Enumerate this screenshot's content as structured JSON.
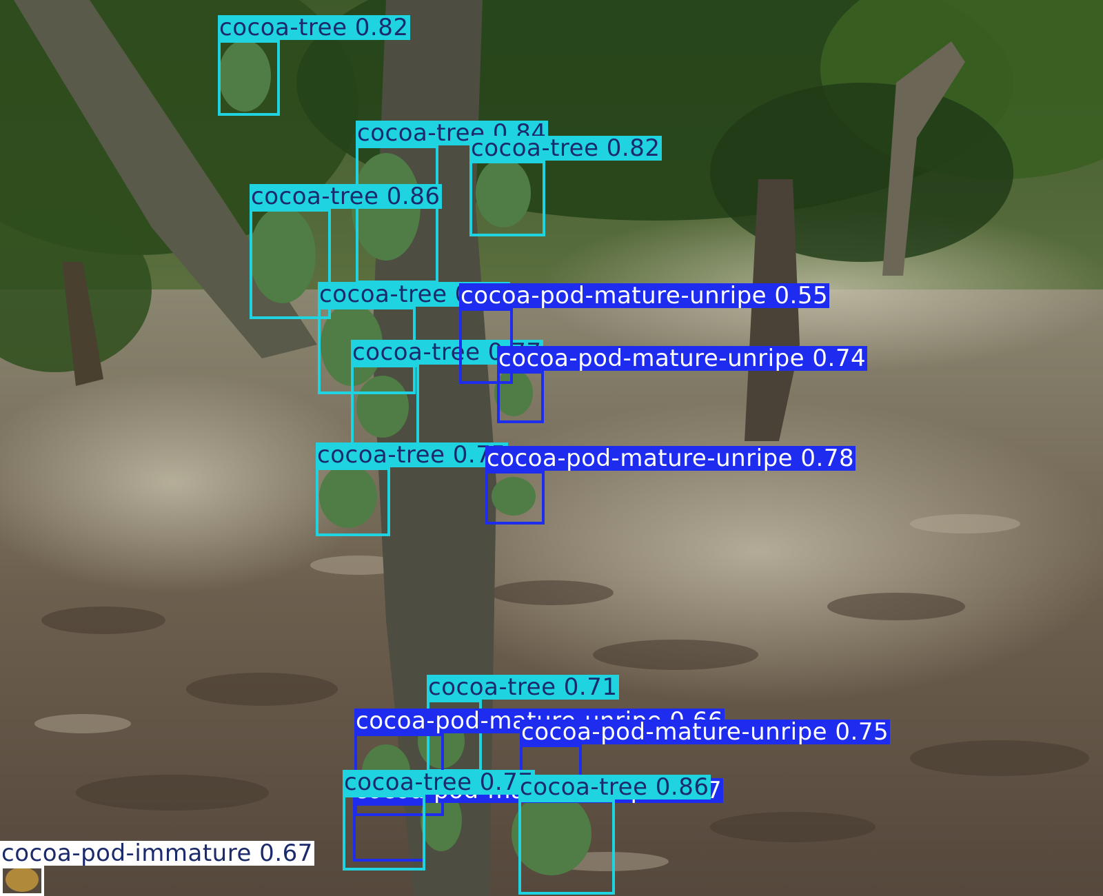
{
  "colors": {
    "cocoa_tree": "#1fd3e0",
    "cocoa_tree_text": "#1a2a6b",
    "pod_mature_unripe": "#1e2cf0",
    "pod_mature_unripe_text": "#ffffff",
    "pod_immature": "#ffffff",
    "pod_immature_text": "#1a2a6b"
  },
  "detections": [
    {
      "label": "cocoa-tree 0.82",
      "cls": "cocoa_tree"
    },
    {
      "label": "cocoa-tree 0.84",
      "cls": "cocoa_tree"
    },
    {
      "label": "cocoa-tree 0.82",
      "cls": "cocoa_tree"
    },
    {
      "label": "cocoa-tree 0.86",
      "cls": "cocoa_tree"
    },
    {
      "label": "cocoa-tree 0.84",
      "cls": "cocoa_tree"
    },
    {
      "label": "cocoa-tree 0.77",
      "cls": "cocoa_tree"
    },
    {
      "label": "cocoa-tree 0.75",
      "cls": "cocoa_tree"
    },
    {
      "label": "cocoa-pod-mature-unripe 0.55",
      "cls": "pod_mature_unripe"
    },
    {
      "label": "cocoa-pod-mature-unripe 0.74",
      "cls": "pod_mature_unripe"
    },
    {
      "label": "cocoa-pod-mature-unripe 0.78",
      "cls": "pod_mature_unripe"
    },
    {
      "label": "cocoa-tree 0.71",
      "cls": "cocoa_tree"
    },
    {
      "label": "cocoa-pod-mature-unripe 0.66",
      "cls": "pod_mature_unripe"
    },
    {
      "label": "cocoa-pod-mature-unripe 0.75",
      "cls": "pod_mature_unripe"
    },
    {
      "label": "cocoa-pod-mature-unripe 0.77",
      "cls": "pod_mature_unripe"
    },
    {
      "label": "cocoa-tree 0.77",
      "cls": "cocoa_tree"
    },
    {
      "label": "cocoa-tree 0.86",
      "cls": "cocoa_tree"
    },
    {
      "label": "cocoa-pod-immature 0.67",
      "cls": "pod_immature"
    }
  ]
}
